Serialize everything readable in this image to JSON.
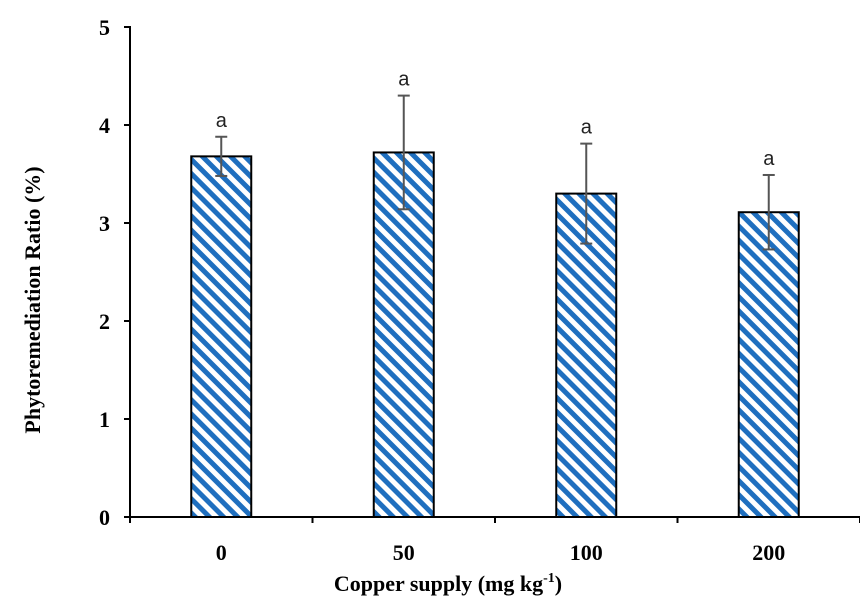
{
  "chart_data": {
    "type": "bar",
    "categories": [
      "0",
      "50",
      "100",
      "200"
    ],
    "values": [
      3.68,
      3.72,
      3.3,
      3.11
    ],
    "errors": [
      0.2,
      0.58,
      0.51,
      0.38
    ],
    "significance_labels": [
      "a",
      "a",
      "a",
      "a"
    ],
    "xlabel": "Copper supply (mg kg",
    "xlabel_superscript": "-1",
    "xlabel_suffix": ")",
    "ylabel": "Phytoremediation Ratio (%)",
    "ylim": [
      0,
      5
    ],
    "yticks": [
      "0",
      "1",
      "2",
      "3",
      "4",
      "5"
    ],
    "grid": false,
    "legend": "none",
    "bar_fill": "diagonal blue/white stripes",
    "bar_color": "#1f6fbf",
    "outline_color": "#000000",
    "error_bar_color": "#555555"
  }
}
